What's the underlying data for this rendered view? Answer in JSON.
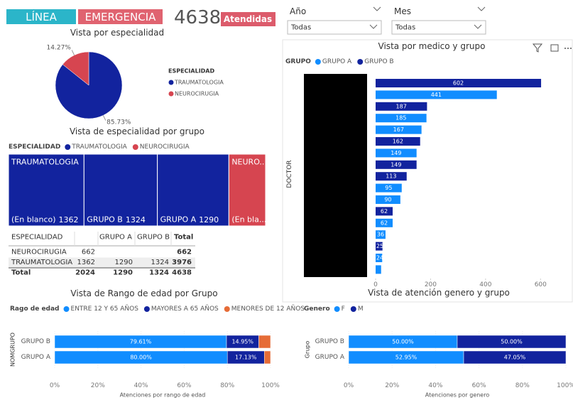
{
  "header": {
    "buttons": [
      "LÍNEA",
      "EMERGENCIA"
    ],
    "kpi_value": 4638,
    "kpi_label": "Atendidas"
  },
  "slicers": [
    {
      "label": "Año",
      "value": "Todas"
    },
    {
      "label": "Mes",
      "value": "Todas"
    }
  ],
  "chart_data": [
    {
      "type": "pie",
      "title": "Vista por especialidad",
      "legend_title": "ESPECIALIDAD",
      "categories": [
        "TRAUMATOLOGIA",
        "NEUROCIRUGIA"
      ],
      "values": [
        85.73,
        14.27
      ],
      "value_labels": [
        "85.73%",
        "14.27%"
      ],
      "colors": [
        "#12239e",
        "#d64550"
      ]
    },
    {
      "type": "treemap",
      "title": "Vista de especialidad por grupo",
      "legend_title": "ESPECIALIDAD",
      "series": [
        {
          "name": "TRAUMATOLOGIA",
          "label": "TRAUMATOLOGIA",
          "color": "#12239e",
          "items": [
            {
              "label": "(En blanco)",
              "value": 1362
            },
            {
              "label": "GRUPO B",
              "value": 1324
            },
            {
              "label": "GRUPO A",
              "value": 1290
            }
          ]
        },
        {
          "name": "NEUROCIRUGIA",
          "label": "NEURO...",
          "color": "#d64550",
          "items": [
            {
              "label": "(En bla...",
              "value": 662
            }
          ]
        }
      ]
    },
    {
      "type": "bar_horizontal",
      "title": "Vista por medico y grupo",
      "legend_title": "GRUPO",
      "y_label": "DOCTOR",
      "categories": [
        null,
        null,
        null,
        null,
        null,
        null,
        null,
        null,
        null,
        null,
        null,
        null,
        null,
        null,
        null,
        null,
        null
      ],
      "xlim": [
        0,
        700
      ],
      "xticks": [
        0,
        200,
        400,
        600
      ],
      "series": [
        {
          "name": "GRUPO A",
          "color": "#118dff",
          "values": [
            null,
            441,
            null,
            185,
            167,
            null,
            149,
            null,
            null,
            95,
            90,
            null,
            62,
            36,
            null,
            24,
            20
          ],
          "value_labels": [
            null,
            "441",
            null,
            "185",
            "167",
            null,
            "149",
            null,
            null,
            "95",
            "90",
            null,
            "62",
            "36",
            null,
            "24",
            null
          ]
        },
        {
          "name": "GRUPO B",
          "color": "#12239e",
          "values": [
            602,
            null,
            187,
            null,
            null,
            162,
            null,
            149,
            113,
            null,
            null,
            62,
            null,
            null,
            25,
            null,
            null
          ],
          "value_labels": [
            "602",
            null,
            "187",
            null,
            null,
            "162",
            null,
            "149",
            "113",
            null,
            null,
            "62",
            null,
            null,
            "25",
            null,
            null
          ]
        }
      ]
    },
    {
      "type": "stacked_bar_100",
      "title": "Vista de Rango de edad por Grupo",
      "legend_title": "Rago de edad",
      "y_label": "NOMGRUPO",
      "x_label": "Atenciones por rango de edad",
      "categories": [
        "GRUPO B",
        "GRUPO A"
      ],
      "xlim": [
        0,
        100
      ],
      "xticks": [
        {
          "value": 0,
          "label": "0%"
        },
        {
          "value": 20,
          "label": "20%"
        },
        {
          "value": 40,
          "label": "40%"
        },
        {
          "value": 60,
          "label": "60%"
        },
        {
          "value": 80,
          "label": "80%"
        },
        {
          "value": 100,
          "label": "100%"
        }
      ],
      "series": [
        {
          "name": "ENTRE 12 Y 65 AÑOS",
          "color": "#118dff",
          "values": [
            79.61,
            80.0
          ],
          "value_labels": [
            "79.61%",
            "80.00%"
          ]
        },
        {
          "name": "MAYORES A 65 AÑOS",
          "color": "#12239e",
          "values": [
            14.95,
            17.13
          ],
          "value_labels": [
            "14.95%",
            "17.13%"
          ]
        },
        {
          "name": "MENORES DE 12 AÑOS",
          "color": "#e66c37",
          "values": [
            5.44,
            2.87
          ]
        }
      ]
    },
    {
      "type": "stacked_bar_100",
      "title": "Vista de atención genero y grupo",
      "legend_title": "Genero",
      "y_label": "Grupo",
      "x_label": "Atenciones por genero",
      "categories": [
        "GRUPO B",
        "GRUPO A"
      ],
      "xlim": [
        0,
        100
      ],
      "xticks": [
        {
          "value": 0,
          "label": "0%"
        },
        {
          "value": 20,
          "label": "20%"
        },
        {
          "value": 40,
          "label": "40%"
        },
        {
          "value": 60,
          "label": "60%"
        },
        {
          "value": 80,
          "label": "80%"
        },
        {
          "value": 100,
          "label": "100%"
        }
      ],
      "series": [
        {
          "name": "F",
          "color": "#118dff",
          "values": [
            50.0,
            52.95
          ],
          "value_labels": [
            "50.00%",
            "52.95%"
          ]
        },
        {
          "name": "M",
          "color": "#12239e",
          "values": [
            50.0,
            47.05
          ],
          "value_labels": [
            "50.00%",
            "47.05%"
          ]
        }
      ]
    }
  ],
  "table": {
    "headers": [
      "ESPECIALIDAD",
      null,
      "GRUPO A",
      "GRUPO B",
      "Total"
    ],
    "rows": [
      [
        "NEUROCIRUGIA",
        662,
        null,
        null,
        662
      ],
      [
        "TRAUMATOLOGIA",
        1362,
        1290,
        1324,
        3976
      ],
      [
        "Total",
        2024,
        1290,
        1324,
        4638
      ]
    ]
  }
}
